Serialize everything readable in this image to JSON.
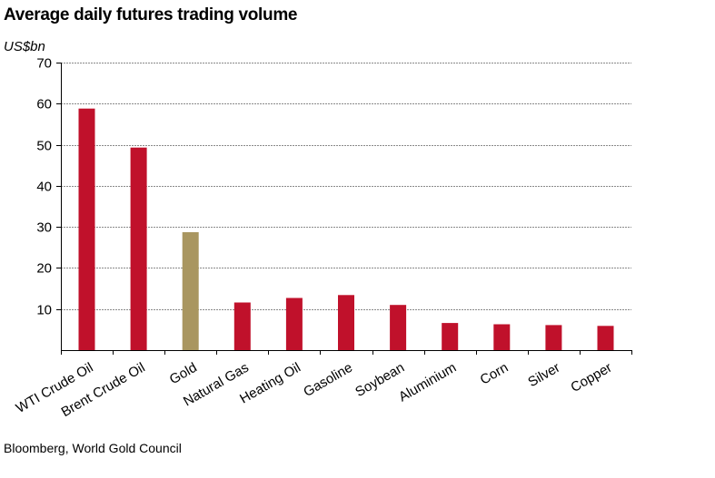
{
  "chart_data": {
    "type": "bar",
    "title": "Average daily futures trading volume",
    "ylabel": "US$bn",
    "xlabel": "",
    "ylim": [
      0,
      70
    ],
    "yticks": [
      10,
      20,
      30,
      40,
      50,
      60,
      70
    ],
    "categories": [
      "WTI Crude Oil",
      "Brent Crude Oil",
      "Gold",
      "Natural Gas",
      "Heating Oil",
      "Gasoline",
      "Soybean",
      "Aluminium",
      "Corn",
      "Silver",
      "Copper"
    ],
    "values": [
      58.8,
      49.3,
      28.7,
      11.6,
      12.7,
      13.4,
      11.0,
      6.6,
      6.3,
      6.1,
      5.9
    ],
    "colors": [
      "#c0112b",
      "#c0112b",
      "#a99660",
      "#c0112b",
      "#c0112b",
      "#c0112b",
      "#c0112b",
      "#c0112b",
      "#c0112b",
      "#c0112b",
      "#c0112b"
    ],
    "grid": true,
    "source": "Bloomberg, World Gold Council"
  }
}
